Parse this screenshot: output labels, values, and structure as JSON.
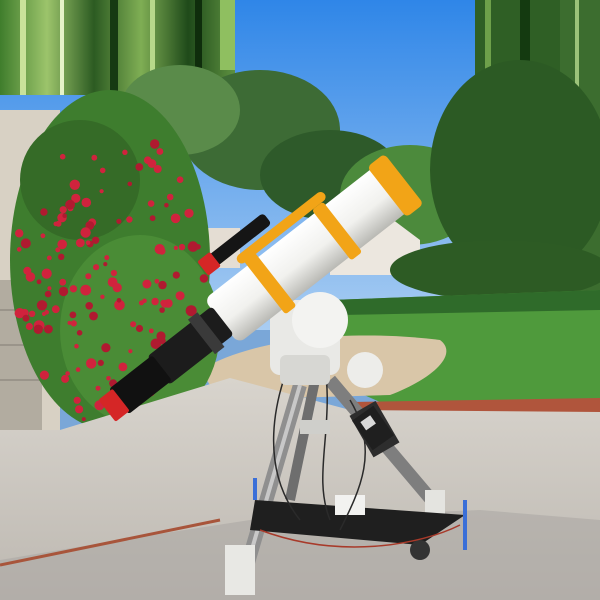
{
  "scene": {
    "subject": "telescope-on-equatorial-mount",
    "colors": {
      "sky_top": "#2f86e8",
      "sky_bottom": "#a9cdf2",
      "grass": "#4f9a3c",
      "grass_shade": "#2f6b2a",
      "driveway": "#cfcac3",
      "driveway_shadow": "#a9a6a2",
      "brick": "#b0553c",
      "gravel": "#d9c6a8",
      "bougainvillea_leaf": "#3e7d2e",
      "bougainvillea_flower": "#d0233d",
      "tube_white": "#f1f1ee",
      "tube_orange": "#f2a417",
      "mount_white": "#e9e9e6",
      "tripod_gray": "#8f8f8f",
      "focuser_black": "#1c1c1c",
      "accent_red": "#d52626"
    }
  }
}
